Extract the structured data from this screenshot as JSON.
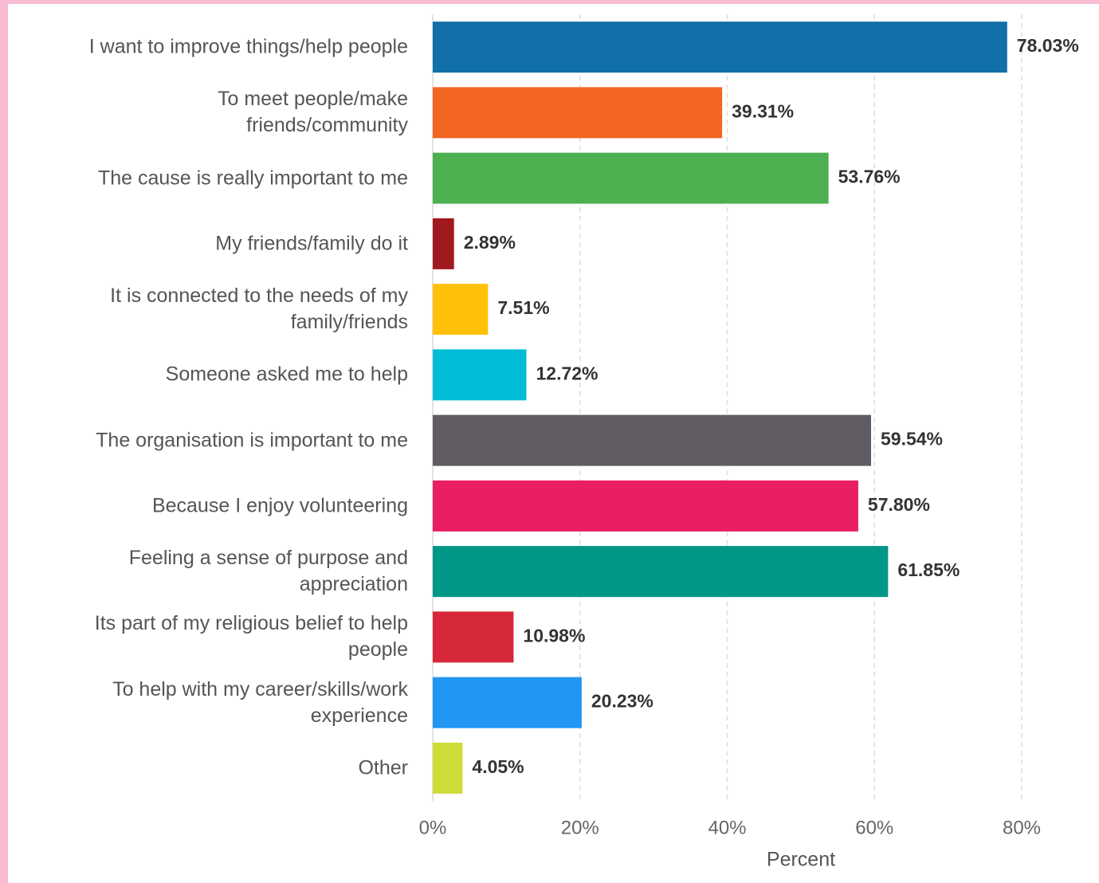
{
  "chart_data": {
    "type": "barh",
    "xlabel": "Percent",
    "categories": [
      "I want to improve things/help people",
      "To meet people/make\nfriends/community",
      "The cause is really important to me",
      "My friends/family do it",
      "It is connected to the needs of my\nfamily/friends",
      "Someone asked me to help",
      "The organisation is important to me",
      "Because I enjoy volunteering",
      "Feeling a sense of purpose and\nappreciation",
      "Its part of my religious belief to help\npeople",
      "To help with my career/skills/work\nexperience",
      "Other"
    ],
    "values": [
      78.03,
      39.31,
      53.76,
      2.89,
      7.51,
      12.72,
      59.54,
      57.8,
      61.85,
      10.98,
      20.23,
      4.05
    ],
    "value_labels": [
      "78.03%",
      "39.31%",
      "53.76%",
      "2.89%",
      "7.51%",
      "12.72%",
      "59.54%",
      "57.80%",
      "61.85%",
      "10.98%",
      "20.23%",
      "4.05%"
    ],
    "colors": [
      "#1170aa",
      "#f26522",
      "#4caf50",
      "#a0191e",
      "#ffc107",
      "#00bcd4",
      "#615c63",
      "#e91e63",
      "#009688",
      "#d62839",
      "#2196f3",
      "#cddc39"
    ],
    "xlim": [
      0,
      80
    ],
    "xticks": [
      {
        "value": 0,
        "label": "0%"
      },
      {
        "value": 20,
        "label": "20%"
      },
      {
        "value": 40,
        "label": "40%"
      },
      {
        "value": 60,
        "label": "60%"
      },
      {
        "value": 80,
        "label": "80%"
      }
    ],
    "grid": true
  }
}
